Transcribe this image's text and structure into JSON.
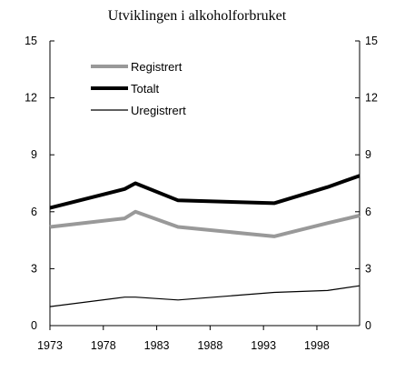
{
  "chart_data": {
    "type": "line",
    "title": "Utviklingen i alkoholforbruket",
    "xlabel": "",
    "ylabel": "",
    "xlim": [
      1973,
      2002
    ],
    "ylim": [
      0,
      15
    ],
    "x_ticks": [
      "1973",
      "1978",
      "1983",
      "1988",
      "1993",
      "1998"
    ],
    "y_ticks": [
      "0",
      "3",
      "6",
      "9",
      "12",
      "15"
    ],
    "y_ticks_right": [
      "0",
      "3",
      "6",
      "9",
      "12",
      "15"
    ],
    "grid": false,
    "legend_position": "top-left",
    "series": [
      {
        "name": "Registrert",
        "color": "#999999",
        "x": [
          1973,
          1980,
          1981,
          1985,
          1994,
          1999,
          2002
        ],
        "y": [
          5.2,
          5.65,
          6.0,
          5.2,
          4.7,
          5.4,
          5.8
        ]
      },
      {
        "name": "Totalt",
        "color": "#000000",
        "x": [
          1973,
          1980,
          1981,
          1985,
          1994,
          1999,
          2002
        ],
        "y": [
          6.2,
          7.2,
          7.5,
          6.6,
          6.45,
          7.3,
          7.9
        ]
      },
      {
        "name": "Uregistrert",
        "color": "#000000",
        "x": [
          1973,
          1980,
          1981,
          1985,
          1994,
          1999,
          2002
        ],
        "y": [
          1.0,
          1.5,
          1.5,
          1.35,
          1.75,
          1.85,
          2.1
        ]
      }
    ]
  }
}
